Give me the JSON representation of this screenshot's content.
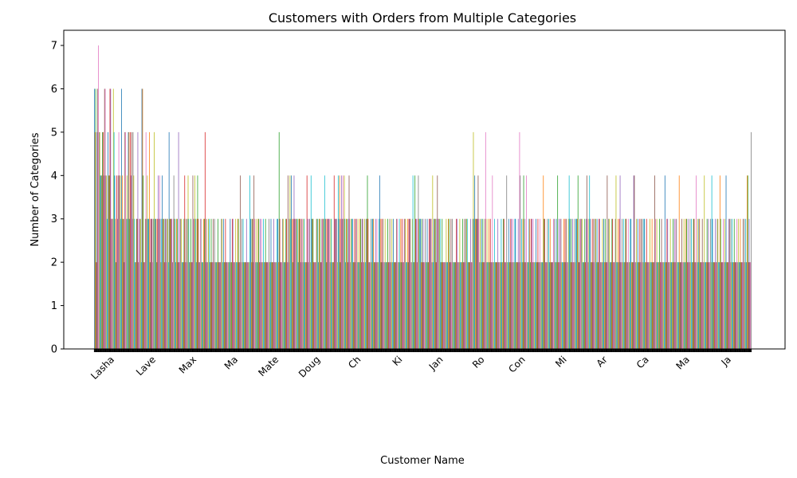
{
  "chart_data": {
    "type": "bar",
    "title": "Customers with Orders from Multiple Categories",
    "xlabel": "Customer Name",
    "ylabel": "Number of Categories",
    "ylim": [
      0,
      7.35
    ],
    "yticks": [
      0,
      1,
      2,
      3,
      4,
      5,
      6,
      7
    ],
    "grid": false,
    "legend": "none",
    "palette": [
      "#1f77b4",
      "#ff7f0e",
      "#2ca02c",
      "#d62728",
      "#9467bd",
      "#8c564b",
      "#e377c2",
      "#7f7f7f",
      "#bcbd22",
      "#17becf"
    ],
    "visible_tick_labels": [
      "Lasha",
      "Lave",
      "Max",
      "Ma",
      "Mate",
      "Doug",
      "Ch",
      "Ki",
      "Jan",
      "Ro",
      "Con",
      "Mi",
      "Ar",
      "Ca",
      "Ma",
      "Ja"
    ],
    "values": [
      6,
      5,
      6,
      2,
      5,
      6,
      7,
      5,
      5,
      4,
      4,
      4,
      5,
      5,
      4,
      6,
      6,
      4,
      4,
      3,
      5,
      4,
      4,
      6,
      6,
      3,
      3,
      3,
      6,
      5,
      4,
      3,
      2,
      4,
      3,
      4,
      5,
      4,
      4,
      3,
      6,
      4,
      3,
      3,
      2,
      5,
      5,
      3,
      4,
      3,
      5,
      5,
      3,
      5,
      4,
      5,
      3,
      5,
      4,
      3,
      2,
      2,
      3,
      3,
      5,
      2,
      3,
      3,
      3,
      2,
      6,
      6,
      4,
      2,
      2,
      3,
      5,
      3,
      4,
      3,
      3,
      5,
      2,
      3,
      3,
      3,
      2,
      3,
      5,
      3,
      3,
      3,
      2,
      3,
      4,
      3,
      4,
      3,
      2,
      3,
      4,
      3,
      3,
      2,
      3,
      3,
      2,
      3,
      3,
      2,
      5,
      3,
      3,
      3,
      3,
      2,
      3,
      4,
      3,
      3,
      2,
      3,
      3,
      2,
      5,
      2,
      3,
      3,
      3,
      2,
      2,
      2,
      3,
      4,
      2,
      3,
      2,
      3,
      4,
      3,
      2,
      2,
      3,
      2,
      2,
      4,
      3,
      3,
      4,
      3,
      2,
      3,
      4,
      3,
      2,
      2,
      3,
      3,
      2,
      2,
      2,
      3,
      3,
      5,
      2,
      3,
      2,
      2,
      3,
      3,
      2,
      2,
      3,
      2,
      2,
      3,
      2,
      3,
      2,
      2,
      2,
      2,
      3,
      2,
      2,
      2,
      2,
      3,
      3,
      2,
      3,
      2,
      2,
      3,
      2,
      2,
      2,
      2,
      2,
      2,
      3,
      2,
      2,
      3,
      3,
      2,
      2,
      2,
      3,
      2,
      2,
      3,
      3,
      2,
      2,
      4,
      2,
      3,
      2,
      3,
      2,
      2,
      2,
      2,
      3,
      2,
      2,
      2,
      2,
      4,
      3,
      2,
      3,
      3,
      2,
      4,
      3,
      2,
      3,
      2,
      2,
      3,
      3,
      2,
      3,
      2,
      3,
      2,
      2,
      3,
      2,
      2,
      3,
      2,
      2,
      2,
      2,
      3,
      2,
      2,
      3,
      2,
      2,
      2,
      3,
      2,
      2,
      2,
      2,
      3,
      3,
      2,
      5,
      3,
      2,
      2,
      2,
      3,
      3,
      2,
      2,
      2,
      3,
      3,
      2,
      4,
      2,
      3,
      4,
      3,
      4,
      3,
      2,
      3,
      4,
      3,
      3,
      3,
      3,
      3,
      2,
      3,
      3,
      3,
      2,
      3,
      3,
      2,
      3,
      3,
      2,
      2,
      2,
      4,
      3,
      2,
      3,
      3,
      2,
      4,
      3,
      3,
      3,
      2,
      2,
      2,
      2,
      3,
      3,
      3,
      2,
      3,
      3,
      2,
      2,
      3,
      3,
      3,
      3,
      4,
      3,
      3,
      2,
      3,
      3,
      3,
      3,
      2,
      3,
      3,
      2,
      2,
      2,
      4,
      3,
      3,
      3,
      3,
      2,
      4,
      3,
      4,
      2,
      3,
      4,
      3,
      4,
      3,
      4,
      3,
      2,
      3,
      3,
      2,
      3,
      4,
      3,
      2,
      3,
      3,
      3,
      2,
      2,
      3,
      2,
      3,
      3,
      2,
      3,
      2,
      2,
      3,
      3,
      2,
      3,
      3,
      2,
      2,
      3,
      2,
      3,
      3,
      4,
      3,
      2,
      2,
      2,
      3,
      2,
      3,
      3,
      3,
      2,
      2,
      3,
      2,
      3,
      2,
      2,
      3,
      4,
      3,
      2,
      3,
      2,
      3,
      2,
      2,
      3,
      2,
      2,
      2,
      3,
      2,
      2,
      3,
      2,
      2,
      3,
      2,
      3,
      2,
      2,
      2,
      2,
      3,
      3,
      2,
      2,
      3,
      2,
      3,
      2,
      3,
      2,
      2,
      3,
      3,
      3,
      2,
      2,
      3,
      2,
      3,
      3,
      3,
      2,
      2,
      3,
      4,
      2,
      2,
      4,
      3,
      3,
      2,
      3,
      4,
      3,
      3,
      3,
      2,
      3,
      2,
      3,
      2,
      2,
      3,
      2,
      2,
      3,
      2,
      2,
      3,
      3,
      3,
      3,
      2,
      4,
      2,
      3,
      3,
      3,
      2,
      3,
      4,
      3,
      3,
      3,
      3,
      2,
      2,
      3,
      2,
      2,
      2,
      2,
      2,
      3,
      2,
      2,
      3,
      3,
      2,
      2,
      3,
      2,
      3,
      2,
      2,
      2,
      2,
      2,
      3,
      3,
      2,
      2,
      2,
      3,
      2,
      2,
      2,
      3,
      2,
      2,
      3,
      2,
      3,
      3,
      3,
      2,
      2,
      2,
      2,
      3,
      2,
      2,
      3,
      5,
      3,
      4,
      3,
      3,
      3,
      3,
      4,
      3,
      2,
      3,
      2,
      3,
      2,
      3,
      2,
      2,
      3,
      5,
      2,
      3,
      2,
      2,
      3,
      2,
      3,
      2,
      2,
      4,
      2,
      2,
      3,
      2,
      2,
      2,
      2,
      3,
      2,
      2,
      2,
      2,
      3,
      2,
      2,
      3,
      3,
      2,
      2,
      2,
      4,
      2,
      2,
      3,
      2,
      2,
      3,
      3,
      2,
      3,
      2,
      2,
      3,
      3,
      2,
      2,
      2,
      3,
      2,
      5,
      4,
      2,
      3,
      2,
      3,
      4,
      2,
      3,
      2,
      4,
      2,
      2,
      2,
      3,
      3,
      2,
      3,
      3,
      2,
      3,
      2,
      2,
      2,
      3,
      2,
      2,
      3,
      2,
      2,
      3,
      2,
      2,
      2,
      2,
      4,
      3,
      3,
      2,
      2,
      2,
      3,
      2,
      3,
      2,
      3,
      2,
      2,
      2,
      2,
      3,
      3,
      2,
      2,
      3,
      2,
      4,
      2,
      3,
      2,
      3,
      3,
      2,
      2,
      2,
      3,
      2,
      3,
      2,
      3,
      2,
      2,
      3,
      4,
      3,
      2,
      3,
      2,
      3,
      2,
      2,
      3,
      2,
      3,
      3,
      3,
      4,
      2,
      2,
      3,
      3,
      3,
      3,
      2,
      2,
      2,
      3,
      2,
      3,
      4,
      3,
      2,
      3,
      4,
      3,
      2,
      2,
      3,
      2,
      3,
      2,
      3,
      3,
      2,
      3,
      2,
      2,
      3,
      3,
      2,
      2,
      2,
      3,
      2,
      3,
      2,
      3,
      2,
      2,
      4,
      2,
      3,
      3,
      2,
      2,
      2,
      3,
      3,
      2,
      2,
      2,
      3,
      4,
      2,
      2,
      3,
      2,
      3,
      4,
      2,
      2,
      3,
      2,
      3,
      2,
      2,
      3,
      3,
      2,
      2,
      3,
      2,
      2,
      3,
      3,
      2,
      2,
      2,
      4,
      4,
      2,
      2,
      3,
      2,
      3,
      2,
      2,
      3,
      2,
      3,
      2,
      3,
      2,
      3,
      3,
      2,
      2,
      3,
      2,
      2,
      2,
      2,
      3,
      2,
      2,
      3,
      2,
      2,
      2,
      4,
      3,
      2,
      3,
      2,
      2,
      2,
      3,
      2,
      2,
      3,
      2,
      2,
      2,
      2,
      4,
      2,
      2,
      3,
      3,
      2,
      2,
      2,
      3,
      2,
      2,
      2,
      3,
      2,
      3,
      2,
      3,
      3,
      2,
      2,
      2,
      4,
      2,
      2,
      2,
      3,
      2,
      2,
      3,
      2,
      2,
      3,
      3,
      2,
      3,
      2,
      2,
      3,
      2,
      3,
      2,
      2,
      3,
      3,
      2,
      2,
      4,
      2,
      3,
      2,
      3,
      3,
      2,
      2,
      2,
      3,
      2,
      2,
      4,
      2,
      2,
      2,
      3,
      2,
      3,
      2,
      2,
      3,
      2,
      4,
      3,
      2,
      2,
      2,
      3,
      2,
      2,
      3,
      3,
      2,
      2,
      4,
      3,
      2,
      2,
      2,
      3,
      2,
      3,
      2,
      4,
      2,
      2,
      2,
      3,
      3,
      2,
      3,
      2,
      3,
      2,
      2,
      3,
      2,
      2,
      2,
      3,
      2,
      3,
      2,
      2,
      3,
      2,
      2,
      2,
      3,
      2,
      3,
      2,
      3,
      2,
      4,
      4,
      2,
      3,
      2,
      2,
      5
    ]
  }
}
